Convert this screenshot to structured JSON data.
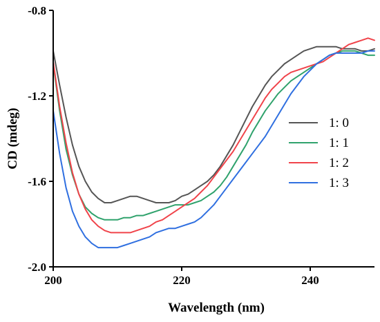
{
  "chart_data": {
    "type": "line",
    "title": "",
    "xlabel": "Wavelength (nm)",
    "ylabel": "CD (mdeg)",
    "xlim": [
      200,
      250
    ],
    "ylim": [
      -2.0,
      -0.8
    ],
    "x_ticks": [
      200,
      220,
      240
    ],
    "x_tick_labels": [
      "200",
      "220",
      "240"
    ],
    "y_ticks": [
      -2.0,
      -1.6,
      -1.2,
      -0.8
    ],
    "y_tick_labels": [
      "-2.0",
      "-1.6",
      "-1.2",
      "-0.8"
    ],
    "grid": false,
    "legend_position": "right",
    "x": [
      200,
      201,
      202,
      203,
      204,
      205,
      206,
      207,
      208,
      209,
      210,
      211,
      212,
      213,
      214,
      215,
      216,
      217,
      218,
      219,
      220,
      221,
      222,
      223,
      224,
      225,
      226,
      227,
      228,
      229,
      230,
      231,
      232,
      233,
      234,
      235,
      236,
      237,
      238,
      239,
      240,
      241,
      242,
      243,
      244,
      245,
      246,
      247,
      248,
      249,
      250
    ],
    "series": [
      {
        "name": "1: 0",
        "color": "#555555",
        "values": [
          -0.99,
          -1.15,
          -1.3,
          -1.43,
          -1.53,
          -1.6,
          -1.65,
          -1.68,
          -1.7,
          -1.7,
          -1.69,
          -1.68,
          -1.67,
          -1.67,
          -1.68,
          -1.69,
          -1.7,
          -1.7,
          -1.7,
          -1.69,
          -1.67,
          -1.66,
          -1.64,
          -1.62,
          -1.6,
          -1.57,
          -1.53,
          -1.48,
          -1.43,
          -1.37,
          -1.31,
          -1.25,
          -1.2,
          -1.15,
          -1.11,
          -1.08,
          -1.05,
          -1.03,
          -1.01,
          -0.99,
          -0.98,
          -0.97,
          -0.97,
          -0.97,
          -0.97,
          -0.98,
          -0.98,
          -0.98,
          -0.99,
          -0.99,
          -0.98
        ]
      },
      {
        "name": "1: 1",
        "color": "#2fa26c",
        "values": [
          -1.05,
          -1.27,
          -1.45,
          -1.57,
          -1.66,
          -1.72,
          -1.75,
          -1.77,
          -1.78,
          -1.78,
          -1.78,
          -1.77,
          -1.77,
          -1.76,
          -1.76,
          -1.75,
          -1.74,
          -1.73,
          -1.72,
          -1.71,
          -1.71,
          -1.71,
          -1.7,
          -1.69,
          -1.67,
          -1.65,
          -1.62,
          -1.58,
          -1.53,
          -1.48,
          -1.43,
          -1.37,
          -1.32,
          -1.27,
          -1.23,
          -1.19,
          -1.16,
          -1.13,
          -1.11,
          -1.09,
          -1.07,
          -1.05,
          -1.03,
          -1.01,
          -1.0,
          -0.99,
          -0.99,
          -0.99,
          -1.0,
          -1.01,
          -1.01
        ]
      },
      {
        "name": "1: 2",
        "color": "#f0434a",
        "values": [
          -1.04,
          -1.25,
          -1.42,
          -1.56,
          -1.66,
          -1.73,
          -1.78,
          -1.81,
          -1.83,
          -1.84,
          -1.84,
          -1.84,
          -1.84,
          -1.83,
          -1.82,
          -1.81,
          -1.79,
          -1.78,
          -1.76,
          -1.74,
          -1.72,
          -1.7,
          -1.68,
          -1.65,
          -1.62,
          -1.58,
          -1.54,
          -1.5,
          -1.46,
          -1.41,
          -1.36,
          -1.31,
          -1.26,
          -1.21,
          -1.17,
          -1.14,
          -1.11,
          -1.09,
          -1.08,
          -1.07,
          -1.06,
          -1.05,
          -1.04,
          -1.02,
          -1.0,
          -0.98,
          -0.96,
          -0.95,
          -0.94,
          -0.93,
          -0.94
        ]
      },
      {
        "name": "1: 3",
        "color": "#2f6fe0",
        "values": [
          -1.27,
          -1.47,
          -1.63,
          -1.74,
          -1.81,
          -1.86,
          -1.89,
          -1.91,
          -1.91,
          -1.91,
          -1.91,
          -1.9,
          -1.89,
          -1.88,
          -1.87,
          -1.86,
          -1.84,
          -1.83,
          -1.82,
          -1.82,
          -1.81,
          -1.8,
          -1.79,
          -1.77,
          -1.74,
          -1.71,
          -1.67,
          -1.63,
          -1.59,
          -1.55,
          -1.51,
          -1.47,
          -1.43,
          -1.39,
          -1.34,
          -1.29,
          -1.24,
          -1.19,
          -1.15,
          -1.11,
          -1.08,
          -1.05,
          -1.03,
          -1.01,
          -1.0,
          -1.0,
          -1.0,
          -1.0,
          -1.0,
          -0.99,
          -0.99
        ]
      }
    ]
  }
}
